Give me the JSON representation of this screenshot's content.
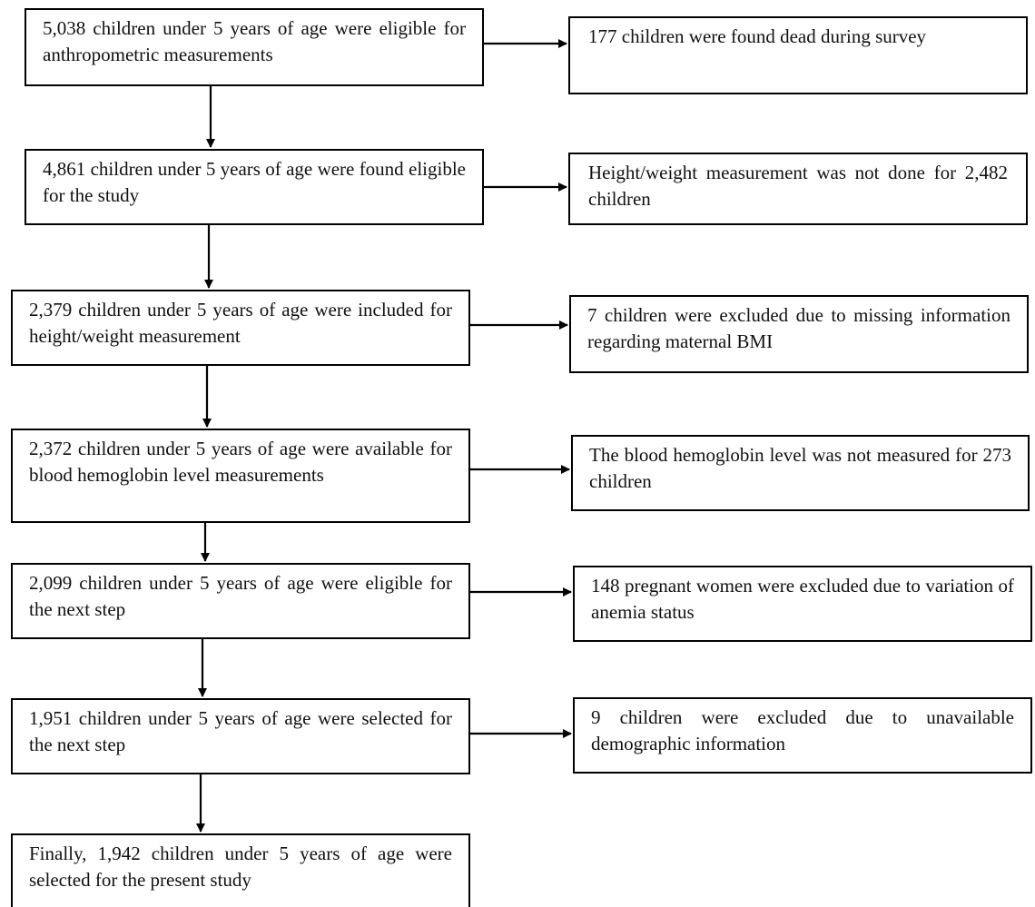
{
  "left_boxes": [
    {
      "text": "5,038 children under 5 years of age were eligible for anthropometric measurements"
    },
    {
      "text": "4,861 children under 5 years of age were found eligible for the study"
    },
    {
      "text": "2,379 children under 5 years of age were included for height/weight measurement"
    },
    {
      "text": "2,372 children under 5 years of age were available for blood hemoglobin level measurements"
    },
    {
      "text": "2,099 children under 5 years of age were eligible for the next step"
    },
    {
      "text": "1,951 children under 5 years of age were selected for the next step"
    },
    {
      "text": "Finally, 1,942 children under 5 years of age were selected for the present study"
    }
  ],
  "right_boxes": [
    {
      "text": "177 children were found dead during survey"
    },
    {
      "text": "Height/weight measurement was not done for 2,482 children"
    },
    {
      "text": "7 children were excluded due to missing information regarding maternal BMI"
    },
    {
      "text": "The blood hemoglobin level was not measured for 273 children"
    },
    {
      "text": "148 pregnant women were excluded due to variation of anemia status"
    },
    {
      "text": "9 children were excluded due to unavailable demographic information"
    }
  ]
}
